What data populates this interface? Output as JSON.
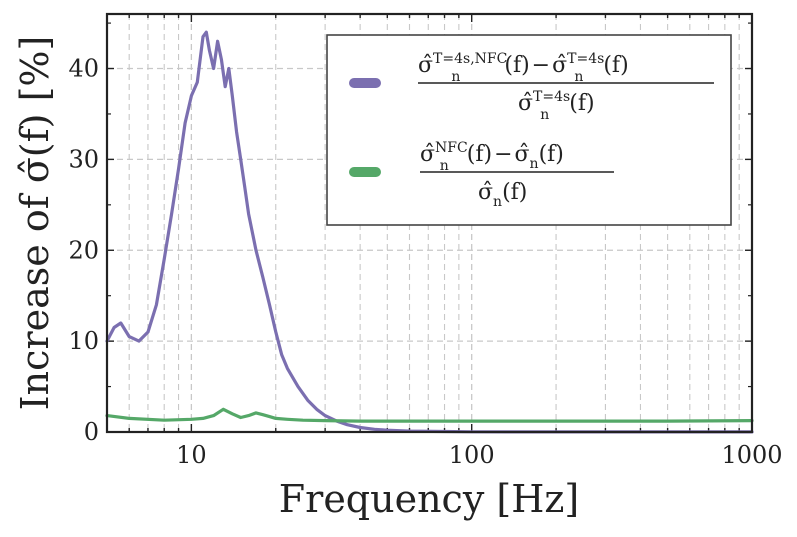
{
  "chart_data": {
    "type": "line",
    "title": "",
    "xlabel": "Frequency [Hz]",
    "ylabel": "Increase of σ̂(f) [%]",
    "xscale": "log",
    "xlim": [
      5,
      1000
    ],
    "ylim": [
      0,
      46
    ],
    "x_ticks": [
      10,
      100,
      1000
    ],
    "x_tick_labels": [
      "10",
      "100",
      "1000"
    ],
    "y_ticks": [
      0,
      10,
      20,
      30,
      40
    ],
    "y_tick_labels": [
      "0",
      "10",
      "20",
      "30",
      "40"
    ],
    "grid": true,
    "legend_position": "top-right",
    "series": [
      {
        "name": "(σ̂ₙ^{T=4s,NFC}(f) − σ̂ₙ^{T=4s}(f)) / σ̂ₙ^{T=4s}(f)",
        "color": "#7b6fb0",
        "x": [
          5,
          5.3,
          5.6,
          6.0,
          6.5,
          7.0,
          7.5,
          8.0,
          8.5,
          9.0,
          9.5,
          10.0,
          10.5,
          11.0,
          11.3,
          11.6,
          12.0,
          12.4,
          12.8,
          13.2,
          13.6,
          14.0,
          14.5,
          15.0,
          15.5,
          16.0,
          17.0,
          18.0,
          19.0,
          20.0,
          21.0,
          22.0,
          24.0,
          26.0,
          28.0,
          30.0,
          33.0,
          36.0,
          40.0,
          45.0,
          50.0,
          60.0,
          80.0,
          100,
          200,
          500,
          1000
        ],
        "values": [
          10,
          11.5,
          12,
          10.5,
          10,
          11,
          14,
          19,
          24,
          29,
          34,
          37,
          38.5,
          43.5,
          44,
          42,
          40,
          43,
          41,
          38,
          40,
          37,
          33,
          30,
          27,
          24,
          20,
          17,
          14,
          11,
          8.5,
          7,
          5,
          3.5,
          2.5,
          1.8,
          1.2,
          0.8,
          0.5,
          0.3,
          0.2,
          0.1,
          0.05,
          0.02,
          0.01,
          0.01,
          0.01
        ]
      },
      {
        "name": "(σ̂ₙ^{NFC}(f) − σ̂ₙ(f)) / σ̂ₙ(f)",
        "color": "#55a868",
        "x": [
          5,
          6,
          8,
          10,
          11,
          12,
          13,
          14,
          15,
          16,
          17,
          18,
          19,
          20,
          22,
          25,
          30,
          40,
          60,
          100,
          200,
          500,
          1000
        ],
        "values": [
          1.8,
          1.5,
          1.3,
          1.4,
          1.5,
          1.8,
          2.5,
          2.0,
          1.6,
          1.8,
          2.1,
          1.9,
          1.7,
          1.5,
          1.4,
          1.3,
          1.25,
          1.2,
          1.2,
          1.2,
          1.2,
          1.2,
          1.25
        ]
      }
    ],
    "legend": [
      {
        "sigma": "σ̂",
        "sub": "n",
        "sup_a": "T=4s,NFC",
        "fn": "(f)",
        "minus": "−",
        "sup_b": "T=4s",
        "den_sup": "T=4s"
      },
      {
        "sigma": "σ̂",
        "sub": "n",
        "sup_a": "NFC",
        "fn": "(f)",
        "minus": "−"
      }
    ]
  }
}
